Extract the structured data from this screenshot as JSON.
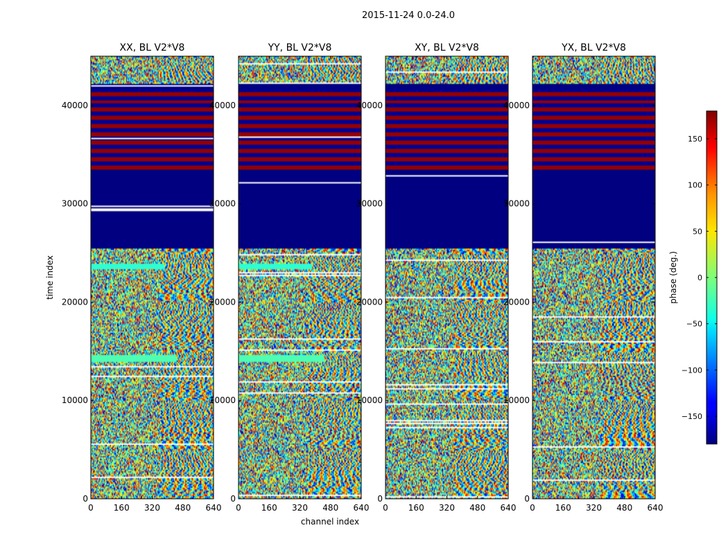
{
  "suptitle": "2015-11-24 0.0-24.0",
  "chart_data": [
    {
      "type": "heatmap",
      "title": "XX, BL V2*V8",
      "pol": "XX",
      "xlim": [
        0,
        640
      ],
      "ylim": [
        0,
        45000
      ]
    },
    {
      "type": "heatmap",
      "title": "YY, BL V2*V8",
      "pol": "YY",
      "xlim": [
        0,
        640
      ],
      "ylim": [
        0,
        45000
      ]
    },
    {
      "type": "heatmap",
      "title": "XY, BL V2*V8",
      "pol": "XY",
      "xlim": [
        0,
        640
      ],
      "ylim": [
        0,
        45000
      ]
    },
    {
      "type": "heatmap",
      "title": "YX, BL V2*V8",
      "pol": "YX",
      "xlim": [
        0,
        640
      ],
      "ylim": [
        0,
        45000
      ]
    }
  ],
  "axes": {
    "xlabel": "channel index",
    "ylabel": "time index",
    "xticks": [
      0,
      160,
      320,
      480,
      640
    ],
    "yticks": [
      0,
      10000,
      20000,
      30000,
      40000
    ],
    "ytick_labels": [
      "0",
      "10000",
      "20000",
      "30000",
      "40000"
    ]
  },
  "colorbar": {
    "label": "phase (deg.)",
    "range": [
      -180,
      180
    ],
    "ticks": [
      150,
      100,
      50,
      0,
      -50,
      -100,
      -150
    ],
    "tick_labels": [
      "150",
      "100",
      "50",
      "0",
      "−50",
      "−100",
      "−150"
    ],
    "colormap": "jet"
  }
}
